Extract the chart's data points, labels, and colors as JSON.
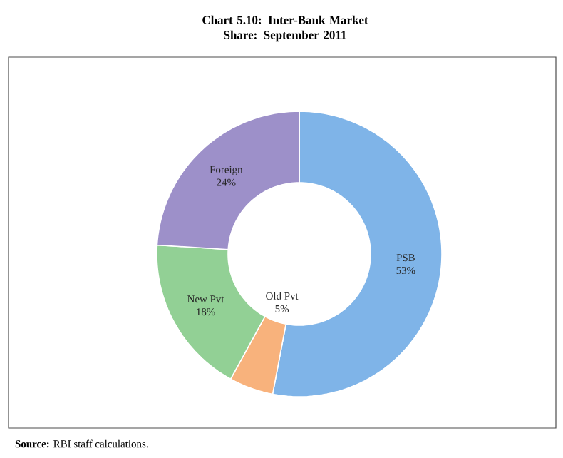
{
  "chart_data": {
    "type": "donut",
    "title": "Chart 5.10: Inter-Bank Market Share: September 2011",
    "categories": [
      "PSB",
      "Old Pvt",
      "New Pvt",
      "Foreign"
    ],
    "values": [
      53,
      5,
      18,
      24
    ],
    "value_labels": [
      "53%",
      "5%",
      "18%",
      "24%"
    ],
    "colors": [
      "#7fb4e8",
      "#f8b27c",
      "#92d095",
      "#9d90c9"
    ],
    "annotations": [
      "**Source:** RBI staff calculations."
    ]
  }
}
